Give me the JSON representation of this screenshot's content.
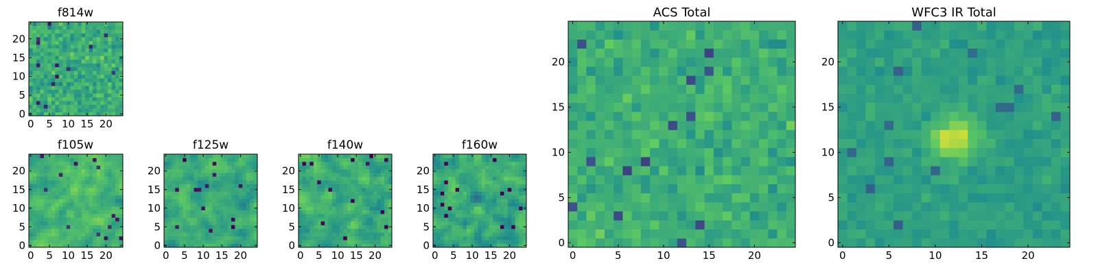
{
  "figure": {
    "colormap": "viridis",
    "colormap_stops": [
      "#440154",
      "#3b528b",
      "#21918c",
      "#5ec962",
      "#fde725"
    ]
  },
  "chart_data": [
    {
      "id": "f814w",
      "type": "heatmap",
      "title": "f814w",
      "grid_size": 25,
      "seed": 814,
      "pixel_scale": 1,
      "smooth": false,
      "mean": 0.62,
      "spread": 0.22,
      "xlim": [
        -0.5,
        24.5
      ],
      "ylim": [
        -0.5,
        24.5
      ],
      "xticks": [
        0,
        5,
        10,
        15,
        20
      ],
      "yticks": [
        0,
        5,
        10,
        15,
        20
      ],
      "xticklabels": [
        "0",
        "5",
        "10",
        "15",
        "20"
      ],
      "yticklabels": [
        "0",
        "5",
        "10",
        "15",
        "20"
      ]
    },
    {
      "id": "f105w",
      "type": "heatmap",
      "title": "f105w",
      "grid_size": 25,
      "seed": 105,
      "pixel_scale": 1,
      "smooth": true,
      "mean": 0.66,
      "spread": 0.24,
      "xlim": [
        -0.5,
        24.5
      ],
      "ylim": [
        -0.5,
        24.5
      ],
      "xticks": [
        0,
        5,
        10,
        15,
        20
      ],
      "yticks": [
        0,
        5,
        10,
        15,
        20
      ],
      "xticklabels": [
        "0",
        "5",
        "10",
        "15",
        "20"
      ],
      "yticklabels": [
        "0",
        "5",
        "10",
        "15",
        "20"
      ]
    },
    {
      "id": "f125w",
      "type": "heatmap",
      "title": "f125w",
      "grid_size": 25,
      "seed": 125,
      "pixel_scale": 1,
      "smooth": true,
      "mean": 0.62,
      "spread": 0.25,
      "xlim": [
        -0.5,
        24.5
      ],
      "ylim": [
        -0.5,
        24.5
      ],
      "xticks": [
        0,
        5,
        10,
        15,
        20
      ],
      "yticks": [
        0,
        5,
        10,
        15,
        20
      ],
      "xticklabels": [
        "0",
        "5",
        "10",
        "15",
        "20"
      ],
      "yticklabels": [
        "0",
        "5",
        "10",
        "15",
        "20"
      ]
    },
    {
      "id": "f140w",
      "type": "heatmap",
      "title": "f140w",
      "grid_size": 25,
      "seed": 140,
      "pixel_scale": 1,
      "smooth": true,
      "mean": 0.62,
      "spread": 0.27,
      "xlim": [
        -0.5,
        24.5
      ],
      "ylim": [
        -0.5,
        24.5
      ],
      "xticks": [
        0,
        5,
        10,
        15,
        20
      ],
      "yticks": [
        0,
        5,
        10,
        15,
        20
      ],
      "xticklabels": [
        "0",
        "5",
        "10",
        "15",
        "20"
      ],
      "yticklabels": [
        "0",
        "5",
        "10",
        "15",
        "20"
      ]
    },
    {
      "id": "f160w",
      "type": "heatmap",
      "title": "f160w",
      "grid_size": 25,
      "seed": 160,
      "pixel_scale": 1,
      "smooth": true,
      "mean": 0.6,
      "spread": 0.28,
      "xlim": [
        -0.5,
        24.5
      ],
      "ylim": [
        -0.5,
        24.5
      ],
      "xticks": [
        0,
        5,
        10,
        15,
        20
      ],
      "yticks": [
        0,
        5,
        10,
        15,
        20
      ],
      "xticklabels": [
        "0",
        "5",
        "10",
        "15",
        "20"
      ],
      "yticklabels": [
        "0",
        "5",
        "10",
        "15",
        "20"
      ]
    },
    {
      "id": "acs_total",
      "type": "heatmap",
      "title": "ACS Total",
      "grid_size": 25,
      "seed": 2001,
      "pixel_scale": 1,
      "smooth": false,
      "mean": 0.63,
      "spread": 0.17,
      "xlim": [
        -0.5,
        24.5
      ],
      "ylim": [
        -0.5,
        24.5
      ],
      "xticks": [
        0,
        5,
        10,
        15,
        20
      ],
      "yticks": [
        0,
        5,
        10,
        15,
        20
      ],
      "xticklabels": [
        "0",
        "5",
        "10",
        "15",
        "20"
      ],
      "yticklabels": [
        "0",
        "5",
        "10",
        "15",
        "20"
      ]
    },
    {
      "id": "wfc3_ir_total",
      "type": "heatmap",
      "title": "WFC3 IR Total",
      "grid_size": 25,
      "seed": 3001,
      "pixel_scale": 1,
      "smooth": false,
      "mean": 0.56,
      "spread": 0.1,
      "hotspot": {
        "x": 12,
        "y": 11.5,
        "amplitude": 0.38,
        "radius": 1.6
      },
      "xlim": [
        -0.5,
        24.5
      ],
      "ylim": [
        -0.5,
        24.5
      ],
      "xticks": [
        0,
        5,
        10,
        15,
        20
      ],
      "yticks": [
        0,
        5,
        10,
        15,
        20
      ],
      "xticklabels": [
        "0",
        "5",
        "10",
        "15",
        "20"
      ],
      "yticklabels": [
        "0",
        "5",
        "10",
        "15",
        "20"
      ]
    }
  ]
}
